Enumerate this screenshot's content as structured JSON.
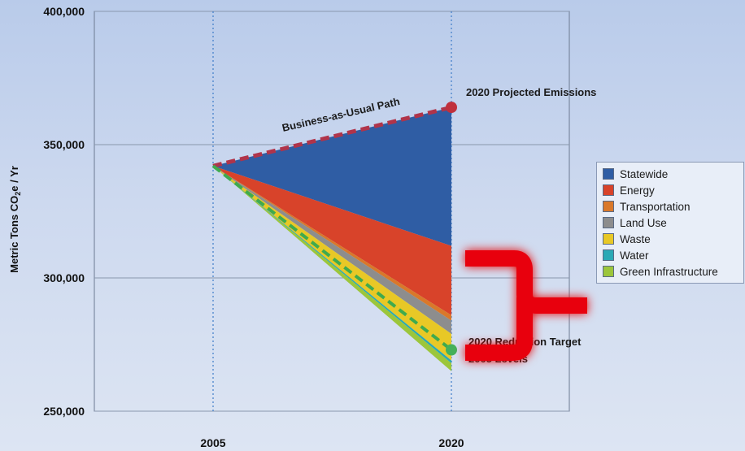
{
  "chart_data": {
    "type": "area",
    "title": "",
    "xlabel": "",
    "ylabel": "Metric Tons CO₂e / Yr",
    "x": [
      "2005",
      "2020"
    ],
    "ylim": [
      250000,
      400000
    ],
    "yticks": [
      "250,000",
      "300,000",
      "350,000",
      "400,000"
    ],
    "grid": true,
    "legend_position": "right",
    "business_as_usual": {
      "label": "Business-as-Usual Path",
      "values": [
        342000,
        364000
      ]
    },
    "projected_label": "2020 Projected Emissions",
    "target": {
      "label_line1": "2020 Reduction Target",
      "label_line2": "2005 Levels",
      "values": [
        342000,
        273000
      ]
    },
    "series": [
      {
        "name": "Statewide",
        "color": "#2f5da4",
        "reduction_2020": 52000
      },
      {
        "name": "Energy",
        "color": "#d8432a",
        "reduction_2020": 26000
      },
      {
        "name": "Transportation",
        "color": "#d9782a",
        "reduction_2020": 2000
      },
      {
        "name": "Land Use",
        "color": "#8d8d8d",
        "reduction_2020": 5000
      },
      {
        "name": "Waste",
        "color": "#e8c826",
        "reduction_2020": 10000
      },
      {
        "name": "Water",
        "color": "#2aa9b5",
        "reduction_2020": 1000
      },
      {
        "name": "Green Infrastructure",
        "color": "#9cc63b",
        "reduction_2020": 3000
      }
    ],
    "colors": {
      "bau_line": "#b0344a",
      "target_line": "#3faa4e",
      "marker_bau": "#c0303c",
      "marker_target": "#44b05a",
      "bracket": "#e8060c"
    }
  }
}
